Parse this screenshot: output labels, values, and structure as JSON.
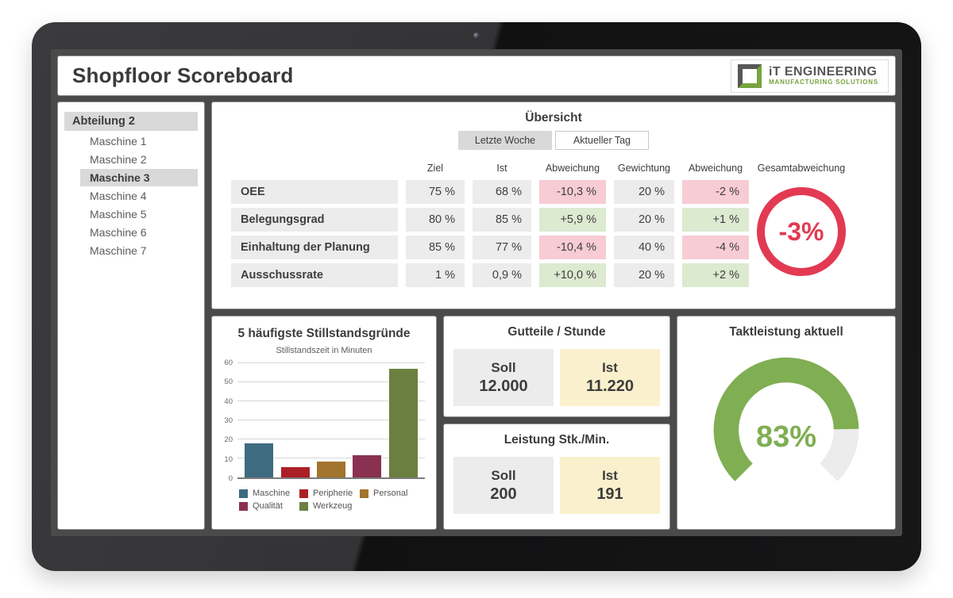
{
  "header": {
    "title": "Shopfloor Scoreboard",
    "logo": {
      "line1": "iT ENGINEERING",
      "line2": "MANUFACTURING SOLUTIONS"
    }
  },
  "sidebar": {
    "department": {
      "label": "Abteilung 2",
      "selected": true
    },
    "items": [
      {
        "label": "Maschine 1",
        "selected": false
      },
      {
        "label": "Maschine 2",
        "selected": false
      },
      {
        "label": "Maschine 3",
        "selected": true
      },
      {
        "label": "Maschine 4",
        "selected": false
      },
      {
        "label": "Maschine 5",
        "selected": false
      },
      {
        "label": "Maschine 6",
        "selected": false
      },
      {
        "label": "Maschine 7",
        "selected": false
      }
    ]
  },
  "overview": {
    "title": "Übersicht",
    "tabs": [
      {
        "label": "Letzte Woche",
        "active": true
      },
      {
        "label": "Aktueller Tag",
        "active": false
      }
    ],
    "columns": [
      "Ziel",
      "Ist",
      "Abweichung",
      "Gewichtung",
      "Abweichung"
    ],
    "rows": [
      {
        "label": "OEE",
        "ziel": "75 %",
        "ist": "68 %",
        "abweichung": "-10,3 %",
        "gewichtung": "20 %",
        "abweichung_gewichtet": "-2 %",
        "tone": "neg"
      },
      {
        "label": "Belegungsgrad",
        "ziel": "80 %",
        "ist": "85 %",
        "abweichung": "+5,9 %",
        "gewichtung": "20 %",
        "abweichung_gewichtet": "+1 %",
        "tone": "pos"
      },
      {
        "label": "Einhaltung der Planung",
        "ziel": "85 %",
        "ist": "77 %",
        "abweichung": "-10,4 %",
        "gewichtung": "40 %",
        "abweichung_gewichtet": "-4 %",
        "tone": "neg"
      },
      {
        "label": "Ausschussrate",
        "ziel": "1 %",
        "ist": "0,9 %",
        "abweichung": "+10,0 %",
        "gewichtung": "20 %",
        "abweichung_gewichtet": "+2 %",
        "tone": "pos"
      }
    ],
    "gesamt_label": "Gesamtabweichung"
  },
  "panels": {
    "gutteile": {
      "title": "Gutteile / Stunde",
      "soll_label": "Soll",
      "soll_value": "12.000",
      "ist_label": "Ist",
      "ist_value": "11.220"
    },
    "leistung": {
      "title": "Leistung Stk./Min.",
      "soll_label": "Soll",
      "soll_value": "200",
      "ist_label": "Ist",
      "ist_value": "191"
    },
    "takt": {
      "title": "Taktleistung aktuell"
    }
  },
  "colors": {
    "accent_red": "#e23a52",
    "accent_green": "#7fae53",
    "logo_gray": "#575756",
    "logo_green": "#76a33e",
    "cell_neg": "#f8ccd5",
    "cell_pos": "#dcead0",
    "highlight": "#d9d9d9"
  },
  "chart_data": [
    {
      "id": "downtime-bar",
      "type": "bar",
      "title": "5 häufigste Stillstandsgründe",
      "ylabel": "Stillstandszeit in Minuten",
      "categories": [
        "Maschine",
        "Peripherie",
        "Personal",
        "Qualität",
        "Werkzeug"
      ],
      "values": [
        18,
        5.5,
        8.5,
        11.5,
        57
      ],
      "colors": [
        "#3e6b80",
        "#ab2026",
        "#a3742e",
        "#8a3151",
        "#6b8040"
      ],
      "ylim": [
        0,
        60
      ],
      "yticks": [
        0,
        10,
        20,
        30,
        40,
        50,
        60
      ],
      "grid": true,
      "legend_position": "bottom"
    },
    {
      "id": "takt-gauge",
      "type": "gauge",
      "value": 83,
      "max": 100,
      "display": "83%",
      "arc_degrees": 270,
      "color": "#7fae53",
      "track_color": "#ececec"
    },
    {
      "id": "gesamtabweichung-indicator",
      "type": "indicator",
      "value": "-3%",
      "color": "#e23a52"
    }
  ]
}
